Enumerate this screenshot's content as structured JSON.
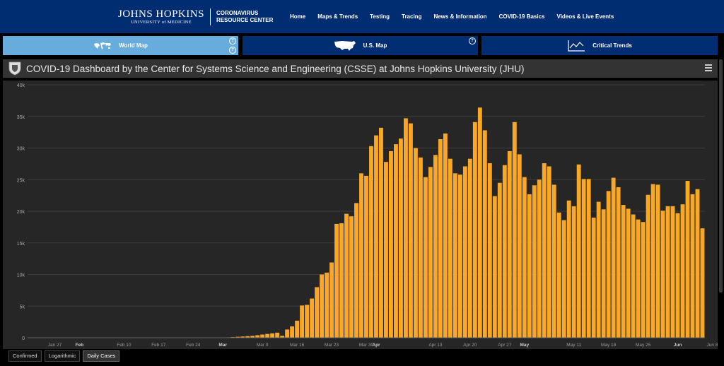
{
  "header": {
    "logo_line1": "JOHNS HOPKINS",
    "logo_line2": "UNIVERSITY of MEDICINE",
    "logo_crc1": "CORONAVIRUS",
    "logo_crc2": "RESOURCE CENTER",
    "nav": [
      "Home",
      "Maps & Trends",
      "Testing",
      "Tracing",
      "News & Information",
      "COVID-19 Basics",
      "Videos & Live Events"
    ]
  },
  "tabs": {
    "world": "World Map",
    "us": "U.S. Map",
    "trends": "Critical Trends",
    "help": "?"
  },
  "dashboard": {
    "title": "COVID-19 Dashboard by the Center for Systems Science and Engineering (CSSE) at Johns Hopkins University (JHU)"
  },
  "bottom_tabs": {
    "confirmed": "Confirmed",
    "log": "Logarithmic",
    "daily": "Daily Cases"
  },
  "colors": {
    "bar": "#f9a825",
    "nav_bg": "#002d72",
    "tab_active": "#68acde",
    "panel": "#262626"
  },
  "chart_data": {
    "type": "bar",
    "start_date": "2020-01-22",
    "ylim": [
      0,
      40000
    ],
    "yticks": [
      {
        "value": 0,
        "label": "0"
      },
      {
        "value": 5000,
        "label": "5k"
      },
      {
        "value": 10000,
        "label": "10k"
      },
      {
        "value": 15000,
        "label": "15k"
      },
      {
        "value": 20000,
        "label": "20k"
      },
      {
        "value": 25000,
        "label": "25k"
      },
      {
        "value": 30000,
        "label": "30k"
      },
      {
        "value": 35000,
        "label": "35k"
      },
      {
        "value": 40000,
        "label": "40k"
      }
    ],
    "xticks": [
      {
        "index": 5,
        "label": "Jan 27",
        "bold": false
      },
      {
        "index": 10,
        "label": "Feb",
        "bold": true
      },
      {
        "index": 19,
        "label": "Feb 10",
        "bold": false
      },
      {
        "index": 26,
        "label": "Feb 17",
        "bold": false
      },
      {
        "index": 33,
        "label": "Feb 24",
        "bold": false
      },
      {
        "index": 39,
        "label": "Mar",
        "bold": true
      },
      {
        "index": 47,
        "label": "Mar 9",
        "bold": false
      },
      {
        "index": 54,
        "label": "Mar 16",
        "bold": false
      },
      {
        "index": 61,
        "label": "Mar 23",
        "bold": false
      },
      {
        "index": 68,
        "label": "Mar 30",
        "bold": false
      },
      {
        "index": 70,
        "label": "Apr",
        "bold": true
      },
      {
        "index": 82,
        "label": "Apr 13",
        "bold": false
      },
      {
        "index": 89,
        "label": "Apr 20",
        "bold": false
      },
      {
        "index": 96,
        "label": "Apr 27",
        "bold": false
      },
      {
        "index": 100,
        "label": "May",
        "bold": true
      },
      {
        "index": 110,
        "label": "May 11",
        "bold": false
      },
      {
        "index": 117,
        "label": "May 18",
        "bold": false
      },
      {
        "index": 124,
        "label": "May 25",
        "bold": false
      },
      {
        "index": 131,
        "label": "Jun",
        "bold": true
      },
      {
        "index": 138,
        "label": "Jun 8",
        "bold": false
      }
    ],
    "values": [
      0,
      0,
      0,
      0,
      0,
      0,
      0,
      0,
      0,
      0,
      0,
      0,
      0,
      0,
      0,
      0,
      0,
      0,
      0,
      0,
      0,
      0,
      0,
      0,
      0,
      0,
      0,
      0,
      0,
      0,
      0,
      0,
      0,
      0,
      0,
      0,
      0,
      0,
      0,
      0,
      60,
      100,
      150,
      200,
      250,
      300,
      400,
      500,
      600,
      700,
      800,
      300,
      1300,
      1800,
      2700,
      5100,
      5200,
      6200,
      8000,
      10000,
      10300,
      11900,
      18000,
      18100,
      19600,
      19200,
      21300,
      26000,
      25600,
      30300,
      32000,
      33200,
      27800,
      29500,
      30600,
      31500,
      34700,
      33900,
      30000,
      28500,
      25400,
      27000,
      28900,
      31400,
      32300,
      28300,
      26000,
      25800,
      27100,
      28300,
      34100,
      36400,
      32800,
      27600,
      22400,
      24500,
      27300,
      29500,
      34100,
      29000,
      25400,
      22700,
      24100,
      25000,
      27600,
      27100,
      24200,
      19800,
      18600,
      21700,
      20800,
      27400,
      25100,
      25100,
      19000,
      21500,
      20300,
      23200,
      25300,
      23800,
      21000,
      20400,
      19500,
      18700,
      18300,
      22600,
      24300,
      24200,
      20100,
      20800,
      20800,
      19700,
      21100,
      24800,
      22700,
      23500,
      17300
    ]
  }
}
